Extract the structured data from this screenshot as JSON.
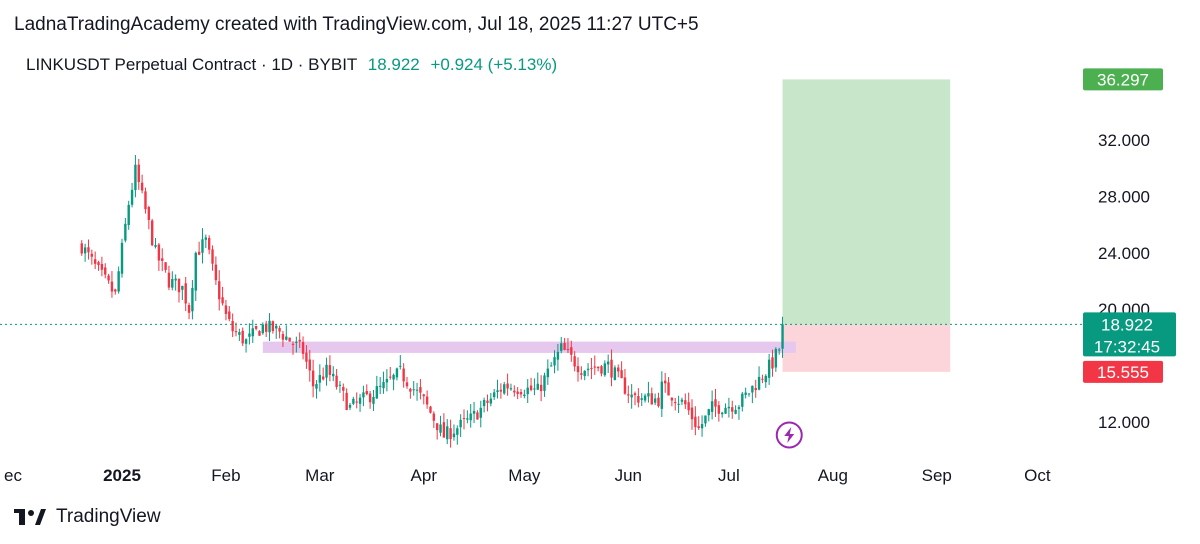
{
  "header": {
    "text": "LadnaTradingAcademy created with TradingView.com, Jul 18, 2025 11:27 UTC+5"
  },
  "symbol": {
    "title": "LINKUSDT Perpetual Contract · 1D · BYBIT",
    "price": "18.922",
    "change": "+0.924 (+5.13%)"
  },
  "footer": {
    "brand": "TradingView"
  },
  "colors": {
    "up": "#089981",
    "down": "#f23645",
    "target_zone": "#c8e6c9",
    "stop_zone": "#fbd5d9",
    "support_zone": "#e6c8ef",
    "target_tag": "#4caf50",
    "stop_tag": "#f23645",
    "price_tag": "#089981",
    "lightning": "#9c27b0"
  },
  "chart_data": {
    "type": "candlestick",
    "title": "LINKUSDT Perpetual Contract · 1D · BYBIT",
    "ylim": [
      9,
      38
    ],
    "y_ticks": [
      12,
      20,
      24,
      28,
      32
    ],
    "y_tick_labels": [
      "12.000",
      "20.000",
      "24.000",
      "28.000",
      "32.000"
    ],
    "x_ticks": [
      "ec",
      "2025",
      "Feb",
      "Mar",
      "Apr",
      "May",
      "Jun",
      "Jul",
      "Aug",
      "Sep",
      "Oct"
    ],
    "last_price": 18.922,
    "countdown": "17:32:45",
    "target_price": "36.297",
    "stop_price": "15.555",
    "position": {
      "entry": 18.92,
      "target": 36.297,
      "stop": 15.555,
      "start": "2025-07-17",
      "end": "2025-09-05"
    },
    "support_zone": {
      "low": 16.9,
      "high": 17.7,
      "start": "2025-02-12",
      "end": "2025-07-21"
    },
    "price_path": [
      [
        "2024-12-20",
        24.5
      ],
      [
        "2024-12-24",
        23.0
      ],
      [
        "2024-12-30",
        21.0
      ],
      [
        "2025-01-03",
        27.5
      ],
      [
        "2025-01-05",
        29.8
      ],
      [
        "2025-01-08",
        27.0
      ],
      [
        "2025-01-11",
        24.0
      ],
      [
        "2025-01-15",
        22.0
      ],
      [
        "2025-01-19",
        21.5
      ],
      [
        "2025-01-21",
        20.0
      ],
      [
        "2025-01-23",
        24.0
      ],
      [
        "2025-01-26",
        24.8
      ],
      [
        "2025-01-29",
        21.8
      ],
      [
        "2025-02-01",
        19.5
      ],
      [
        "2025-02-03",
        18.5
      ],
      [
        "2025-02-07",
        17.7
      ],
      [
        "2025-02-12",
        18.8
      ],
      [
        "2025-02-17",
        18.4
      ],
      [
        "2025-02-24",
        17.0
      ],
      [
        "2025-02-27",
        14.6
      ],
      [
        "2025-03-03",
        15.6
      ],
      [
        "2025-03-05",
        15.0
      ],
      [
        "2025-03-10",
        13.0
      ],
      [
        "2025-03-20",
        14.5
      ],
      [
        "2025-03-25",
        15.5
      ],
      [
        "2025-04-01",
        13.5
      ],
      [
        "2025-04-07",
        11.0
      ],
      [
        "2025-04-15",
        12.2
      ],
      [
        "2025-04-25",
        14.6
      ],
      [
        "2025-05-05",
        14.2
      ],
      [
        "2025-05-12",
        17.2
      ],
      [
        "2025-05-18",
        15.8
      ],
      [
        "2025-05-26",
        16.0
      ],
      [
        "2025-06-02",
        13.8
      ],
      [
        "2025-06-10",
        13.6
      ],
      [
        "2025-06-11",
        14.5
      ],
      [
        "2025-06-18",
        13.2
      ],
      [
        "2025-06-22",
        11.5
      ],
      [
        "2025-06-26",
        13.0
      ],
      [
        "2025-07-04",
        13.3
      ],
      [
        "2025-07-10",
        15.0
      ],
      [
        "2025-07-14",
        16.2
      ],
      [
        "2025-07-16",
        17.2
      ],
      [
        "2025-07-17",
        18.922
      ]
    ],
    "annotations": [
      "36.297",
      "15.555",
      "17:32:45"
    ]
  }
}
